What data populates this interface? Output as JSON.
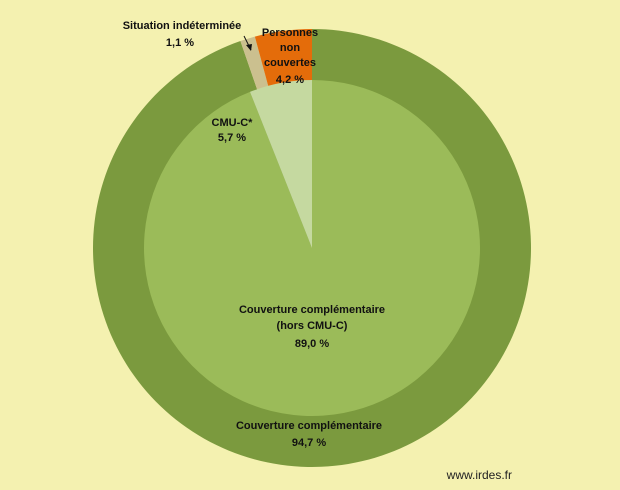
{
  "chart_data": {
    "type": "pie",
    "outer_ring": [
      {
        "label": "Couverture complémentaire",
        "value": 94.7,
        "value_text": "94,7 %",
        "color": "#7b9a3e"
      },
      {
        "label": "Situation indéterminée",
        "value": 1.1,
        "value_text": "1,1 %",
        "color": "#cbc08f"
      },
      {
        "label": "Personnes non couvertes",
        "value": 4.2,
        "value_text": "4,2 %",
        "color": "#e46c0a"
      }
    ],
    "inner_pie": [
      {
        "label": "Couverture complémentaire (hors CMU-C)",
        "value": 89.0,
        "value_text": "89,0 %",
        "color": "#9bbb59"
      },
      {
        "label": "CMU-C*",
        "value": 5.7,
        "value_text": "5,7 %",
        "color": "#c5d9a0"
      }
    ]
  },
  "labels": {
    "outer_main_line1": "Couverture complémentaire",
    "outer_main_value": "94,7 %",
    "inner_main_line1": "Couverture complémentaire",
    "inner_main_line2": "(hors CMU-C)",
    "inner_main_value": "89,0 %",
    "cmuc_name": "CMU-C*",
    "cmuc_value": "5,7 %",
    "indet_name": "Situation indéterminée",
    "indet_value": "1,1 %",
    "nc_line1": "Personnes",
    "nc_line2": "non",
    "nc_line3": "couvertes",
    "nc_value": "4,2 %"
  },
  "credit": "www.irdes.fr"
}
